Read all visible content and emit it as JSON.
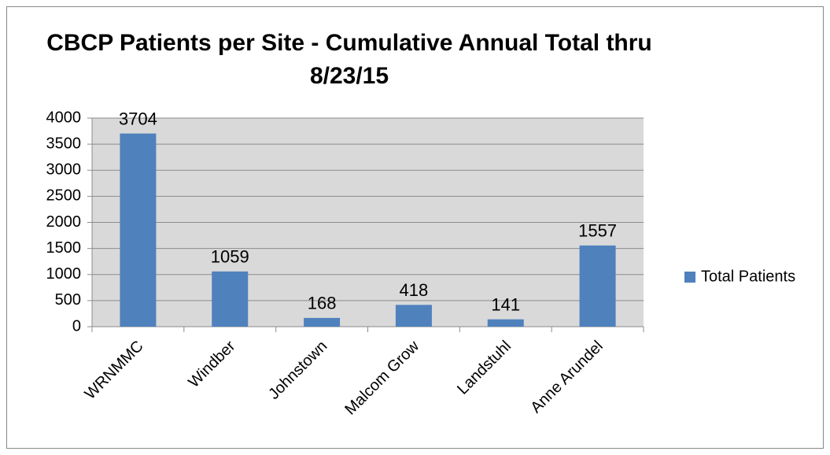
{
  "chart_data": {
    "type": "bar",
    "title": "CBCP Patients per Site - Cumulative Annual Total thru 8/23/15",
    "categories": [
      "WRNMMC",
      "Windber",
      "Johnstown",
      "Malcom Grow",
      "Landstuhl",
      "Anne Arundel"
    ],
    "series": [
      {
        "name": "Total Patients",
        "color": "#4f81bd",
        "values": [
          3704,
          1059,
          168,
          418,
          141,
          1557
        ]
      }
    ],
    "ylim": [
      0,
      4000
    ],
    "yticks": [
      0,
      500,
      1000,
      1500,
      2000,
      2500,
      3000,
      3500,
      4000
    ],
    "grid": true,
    "legend": "right"
  }
}
